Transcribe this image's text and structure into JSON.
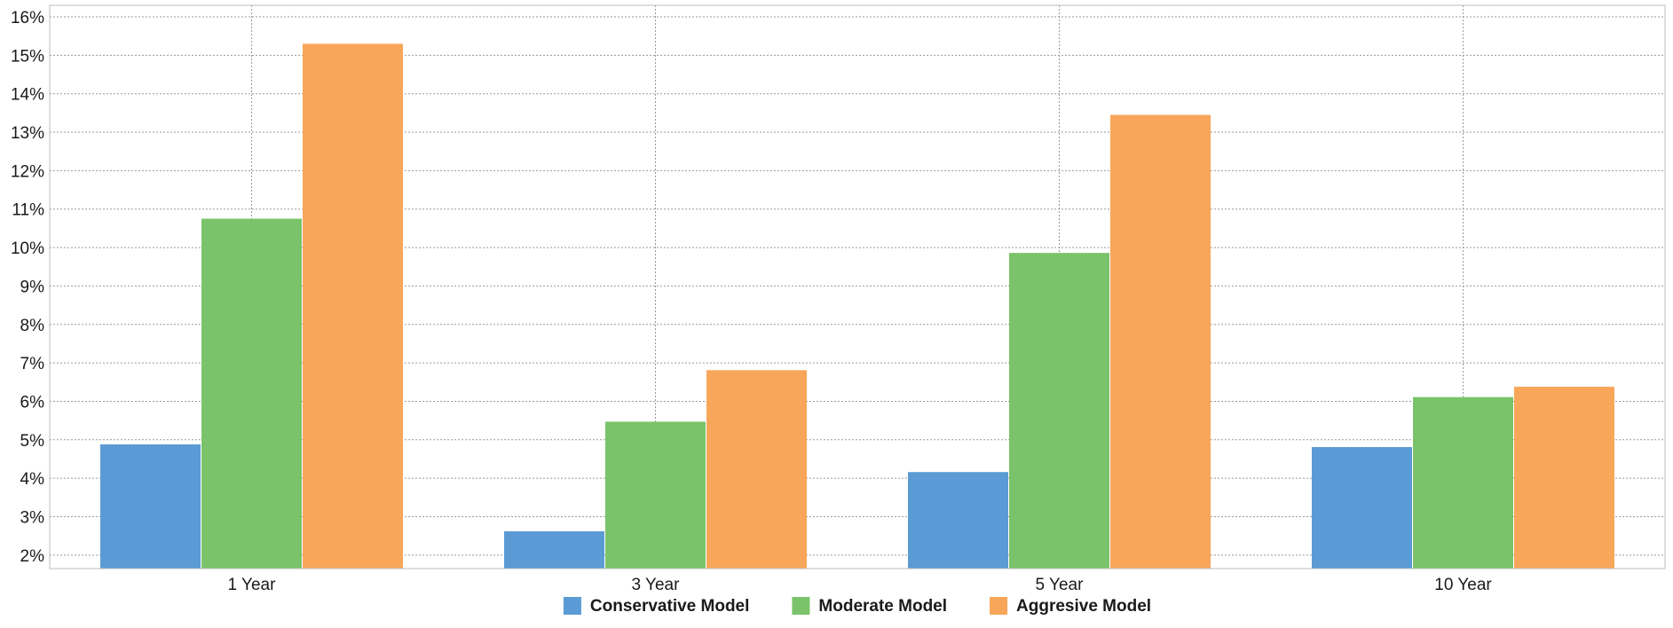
{
  "chart_data": {
    "type": "bar",
    "title": "",
    "xlabel": "",
    "ylabel": "",
    "categories": [
      "1 Year",
      "3 Year",
      "5 Year",
      "10 Year"
    ],
    "series": [
      {
        "name": "Conservative Model",
        "color": "#5b9bd5",
        "values": [
          4.88,
          2.62,
          4.16,
          4.81
        ]
      },
      {
        "name": "Moderate Model",
        "color": "#7bc36a",
        "values": [
          10.75,
          5.47,
          9.86,
          6.11
        ]
      },
      {
        "name": "Aggresive Model",
        "color": "#f8a65a",
        "values": [
          15.3,
          6.81,
          13.45,
          6.38
        ]
      }
    ],
    "ylim": [
      1.65,
      16.3
    ],
    "yticks": [
      2,
      3,
      4,
      5,
      6,
      7,
      8,
      9,
      10,
      11,
      12,
      13,
      14,
      15,
      16
    ],
    "ytick_format": "{v}%",
    "grid": true,
    "legend_position": "bottom"
  }
}
